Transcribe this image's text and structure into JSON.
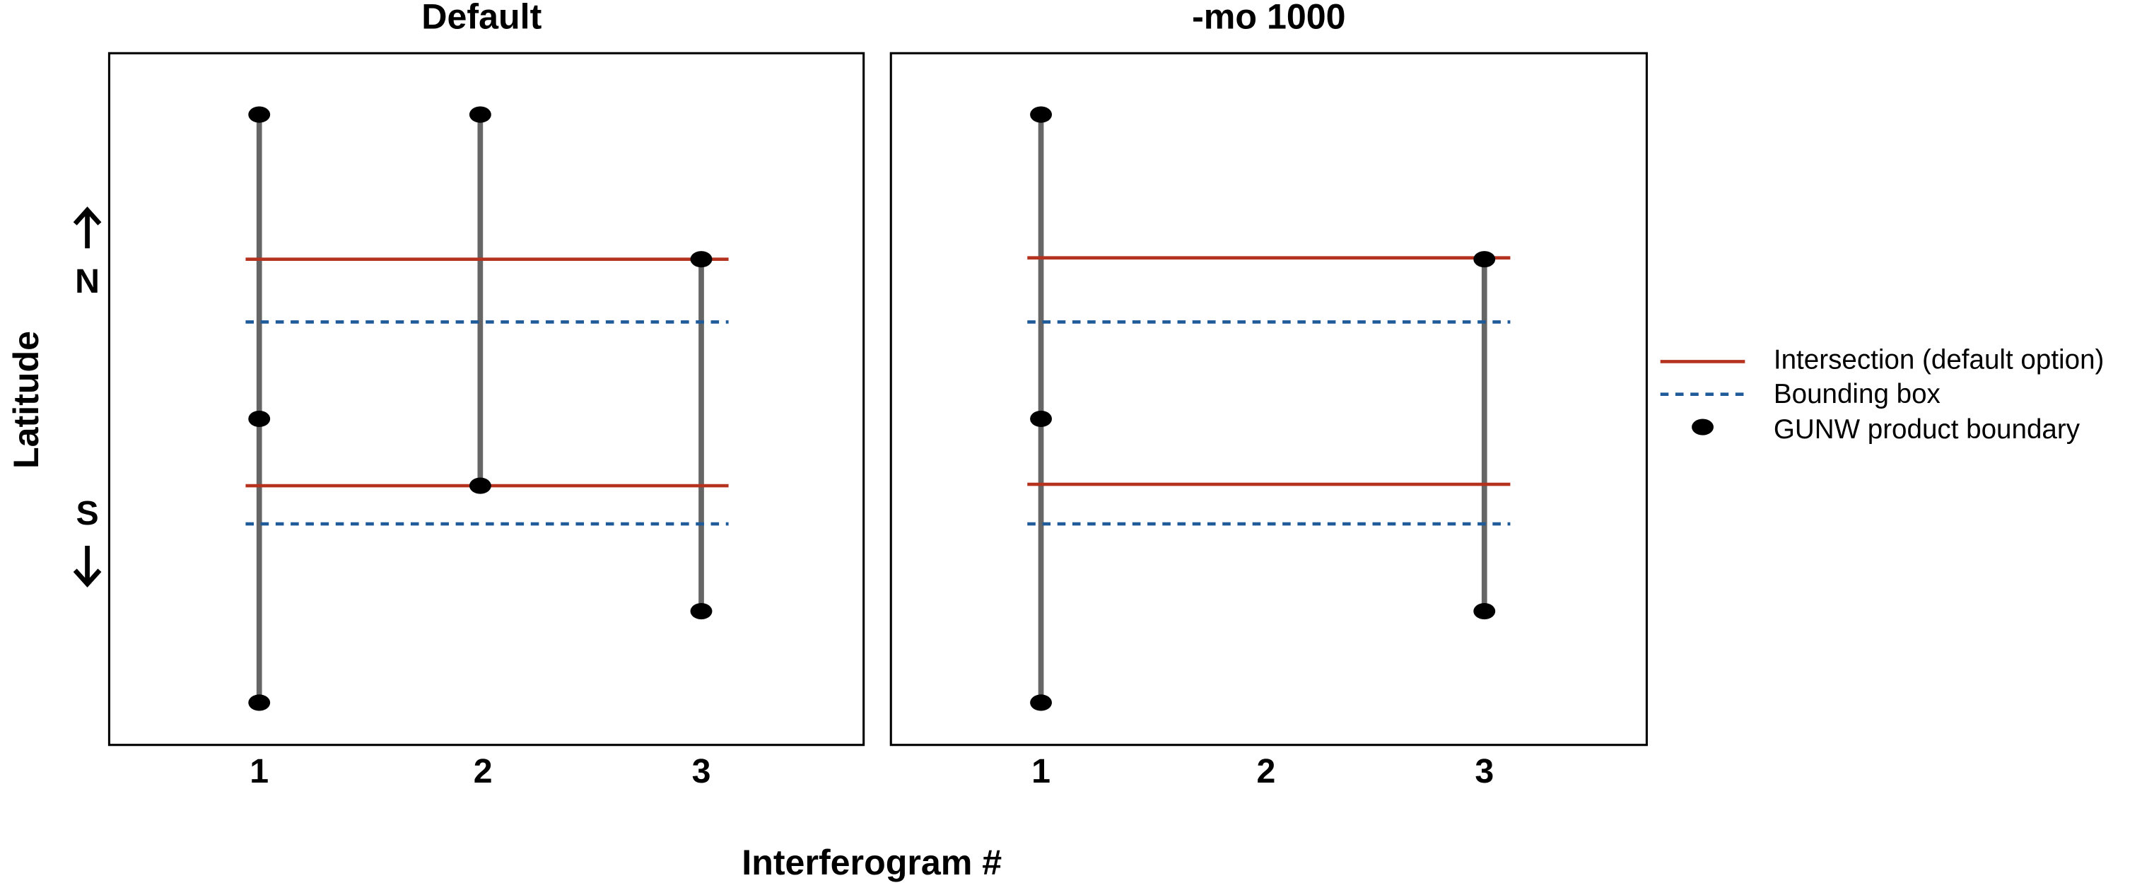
{
  "panels": [
    {
      "title": "Default",
      "ticks": [
        "1",
        "2",
        "3"
      ]
    },
    {
      "title": "-mo 1000",
      "ticks": [
        "1",
        "2",
        "3"
      ]
    }
  ],
  "y_axis": {
    "label": "Latitude",
    "north": "N",
    "south": "S"
  },
  "x_axis": {
    "label": "Interferogram #"
  },
  "legend": [
    {
      "label": "Intersection (default option)"
    },
    {
      "label": "Bounding box"
    },
    {
      "label": "GUNW product boundary"
    }
  ]
}
